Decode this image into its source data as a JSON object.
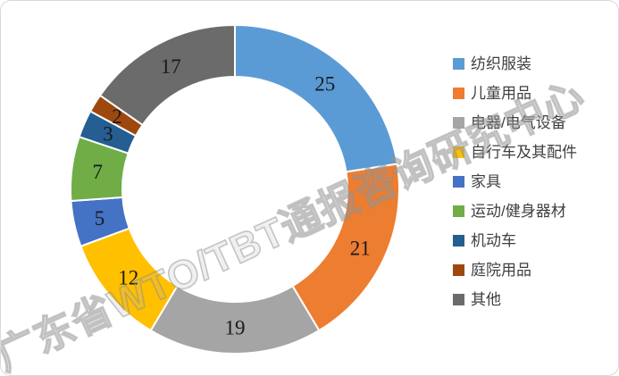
{
  "watermark": {
    "text": "广东省WTO/TBT通报咨询研究中心"
  },
  "chart_data": {
    "type": "pie",
    "subtype": "donut",
    "title": "",
    "categories": [
      "纺织服装",
      "儿童用品",
      "电器/电气设备",
      "自行车及其配件",
      "家具",
      "运动/健身器材",
      "机动车",
      "庭院用品",
      "其他"
    ],
    "values": [
      25,
      21,
      19,
      12,
      5,
      7,
      3,
      2,
      17
    ],
    "colors": [
      "#5B9BD5",
      "#ED7D31",
      "#A5A5A5",
      "#FFC000",
      "#4472C4",
      "#70AD47",
      "#255E91",
      "#9E480E",
      "#6B6B6B"
    ],
    "total": 111,
    "start_angle_deg": 0,
    "direction": "clockwise",
    "hole_ratio": 0.685,
    "slice_gap_color": "#ffffff",
    "legend_position": "right",
    "data_labels": true,
    "label_color": "#1a1a1a"
  }
}
